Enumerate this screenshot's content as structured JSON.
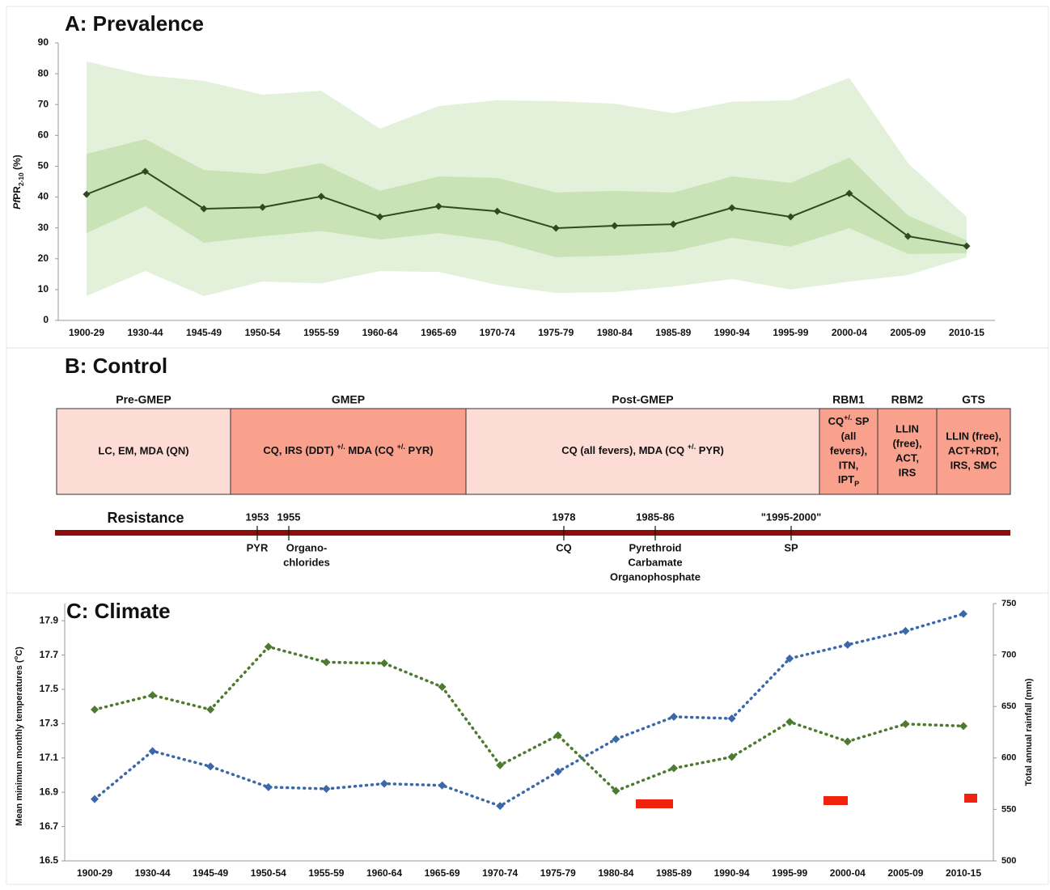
{
  "chart_data": [
    {
      "type": "band_line",
      "title": "A: Prevalence",
      "ylabel": [
        {
          "i": "Pf"
        },
        "PR",
        {
          "sub": "2-10"
        },
        " (%)"
      ],
      "categories": [
        "1900-29",
        "1930-44",
        "1945-49",
        "1950-54",
        "1955-59",
        "1960-64",
        "1965-69",
        "1970-74",
        "1975-79",
        "1980-84",
        "1985-89",
        "1990-94",
        "1995-99",
        "2000-04",
        "2005-09",
        "2010-15"
      ],
      "ylim": [
        0,
        90
      ],
      "yticks": [
        0,
        10,
        20,
        30,
        40,
        50,
        60,
        70,
        80,
        90
      ],
      "values": [
        40.9,
        48.3,
        36.2,
        36.7,
        40.2,
        33.6,
        37,
        35.4,
        29.9,
        30.7,
        31.2,
        36.5,
        33.6,
        41.2,
        27.3,
        24.1
      ],
      "line_color": "#2f4a22",
      "bands": [
        {
          "color": "#e4f1da",
          "low": [
            7.9,
            16,
            7.9,
            12.6,
            12,
            16,
            15.7,
            11.5,
            8.9,
            9.2,
            11,
            13.4,
            10,
            12.6,
            14.7,
            20.5
          ],
          "high": [
            84,
            79.5,
            77.7,
            73.2,
            74.5,
            62.2,
            69.5,
            71.4,
            71.1,
            70.3,
            67.2,
            70.9,
            71.4,
            78.7,
            51,
            33.6
          ]
        },
        {
          "color": "#c9e3b6",
          "low": [
            28.3,
            37,
            25.2,
            27.3,
            29,
            26.2,
            28.3,
            25.7,
            20.5,
            21,
            22.3,
            26.8,
            23.9,
            29.9,
            21.5,
            21.8
          ],
          "high": [
            54,
            58.8,
            48.8,
            47.5,
            51,
            42,
            46.7,
            46.2,
            41.5,
            42,
            41.5,
            46.7,
            44.6,
            52.8,
            34,
            26
          ]
        }
      ]
    },
    {
      "type": "dual_line",
      "title": "C: Climate",
      "ylabel": [
        "Mean minimum monthly temperatures (",
        {
          "sup": "o"
        },
        "C)"
      ],
      "y2label": "Total annual rainfall (mm)",
      "categories": [
        "1900-29",
        "1930-44",
        "1945-49",
        "1950-54",
        "1955-59",
        "1960-64",
        "1965-69",
        "1970-74",
        "1975-79",
        "1980-84",
        "1985-89",
        "1990-94",
        "1995-99",
        "2000-04",
        "2005-09",
        "2010-15"
      ],
      "ylim": [
        16.5,
        18.0
      ],
      "yticks": [
        16.5,
        16.7,
        16.9,
        17.1,
        17.3,
        17.5,
        17.7,
        17.9
      ],
      "y2lim": [
        500,
        750
      ],
      "y2ticks": [
        500,
        550,
        600,
        650,
        700,
        750
      ],
      "series": [
        {
          "color": "#3b68aa",
          "values": [
            16.86,
            17.14,
            17.05,
            16.93,
            16.92,
            16.95,
            16.94,
            16.82,
            17.02,
            17.21,
            17.34,
            17.33,
            17.68,
            17.76,
            17.84,
            17.94
          ]
        },
        {
          "color": "#4c7a2e",
          "axis": "y2",
          "values": [
            647,
            661,
            647,
            708,
            693,
            692,
            669,
            593,
            622,
            568,
            590,
            601,
            635,
            616,
            633,
            631
          ]
        }
      ]
    }
  ],
  "control": {
    "title": "B: Control",
    "phases": [
      {
        "name": "Pre-GMEP",
        "color": "#fddcd6",
        "lines": [
          "LC, EM, MDA (QN)"
        ]
      },
      {
        "name": "GMEP",
        "color": "#f9a18d",
        "lines": [
          [
            "CQ, IRS (DDT) ",
            {
              "sup": "+/."
            },
            " MDA (CQ ",
            {
              "sup": "+/."
            },
            " PYR)"
          ]
        ]
      },
      {
        "name": "Post-GMEP",
        "color": "#fddcd6",
        "lines": [
          [
            "CQ (all fevers), MDA (CQ ",
            {
              "sup": "+/."
            },
            " PYR)"
          ]
        ]
      },
      {
        "name": "RBM1",
        "color": "#f9a18d",
        "lines": [
          [
            "CQ",
            {
              "sup": "+/."
            },
            " SP"
          ],
          "(all",
          "fevers),",
          "ITN,",
          [
            "IPT",
            {
              "sub": "P"
            }
          ]
        ]
      },
      {
        "name": "RBM2",
        "color": "#f9a18d",
        "lines": [
          "LLIN",
          "(free),",
          "ACT,",
          "IRS"
        ]
      },
      {
        "name": "GTS",
        "color": "#f9a18d",
        "lines": [
          "LLIN (free),",
          "ACT+RDT,",
          "IRS, SMC"
        ]
      }
    ],
    "resistance": {
      "label": "Resistance",
      "color": "#8b0d0d",
      "events": [
        {
          "year": "1953",
          "agents": [
            "PYR"
          ]
        },
        {
          "year": "1955",
          "agents": [
            "Organo-",
            "chlorides"
          ]
        },
        {
          "year": "1978",
          "agents": [
            "CQ"
          ]
        },
        {
          "year": "1985-86",
          "agents": [
            "Pyrethroid",
            "Carbamate",
            "Organophosphate"
          ]
        },
        {
          "year": "\"1995-2000\"",
          "agents": [
            "SP"
          ]
        }
      ]
    }
  }
}
